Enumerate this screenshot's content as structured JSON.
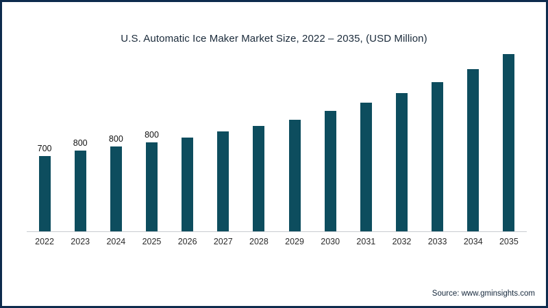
{
  "title": "U.S. Automatic Ice Maker Market Size, 2022 – 2035, (USD Million)",
  "source": "Source: www.gminsights.com",
  "colors": {
    "bar": "#0d4d5e",
    "frame_border": "#0d2b4d",
    "axis_line": "#c7cbd0"
  },
  "chart_data": {
    "type": "bar",
    "title": "U.S. Automatic Ice Maker Market Size, 2022 – 2035, (USD Million)",
    "xlabel": "",
    "ylabel": "USD Million",
    "categories": [
      "2022",
      "2023",
      "2024",
      "2025",
      "2026",
      "2027",
      "2028",
      "2029",
      "2030",
      "2031",
      "2032",
      "2033",
      "2034",
      "2035"
    ],
    "values": [
      700,
      750,
      790,
      830,
      870,
      930,
      980,
      1040,
      1120,
      1200,
      1290,
      1390,
      1510,
      1650
    ],
    "bar_labels": [
      "700",
      "800",
      "800",
      "800",
      "",
      "",
      "",
      "",
      "",
      "",
      "",
      "",
      "",
      ""
    ],
    "ylim": [
      0,
      1720
    ],
    "grid": false,
    "legend": "none",
    "bar_color": "#0d4d5e"
  }
}
